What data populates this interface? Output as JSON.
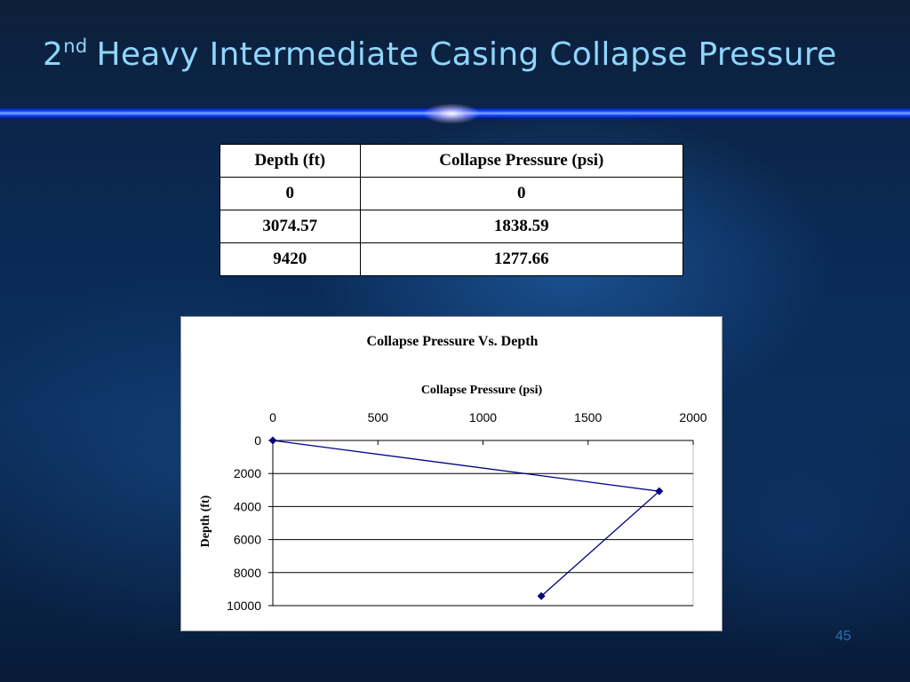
{
  "slide": {
    "title_prefix": "2",
    "title_sup": "nd",
    "title_main": "Heavy Intermediate Casing Collapse Pressure",
    "page_number": "45"
  },
  "table": {
    "headers": [
      "Depth (ft)",
      "Collapse Pressure (psi)"
    ],
    "rows": [
      [
        "0",
        "0"
      ],
      [
        "3074.57",
        "1838.59"
      ],
      [
        "9420",
        "1277.66"
      ]
    ]
  },
  "chart_data": {
    "type": "line",
    "title": "Collapse Pressure Vs. Depth",
    "xlabel": "Collapse Pressure (psi)",
    "ylabel": "Depth (ft)",
    "x_axis_position": "top",
    "y_axis_reversed": true,
    "xlim": [
      0,
      2000
    ],
    "ylim": [
      0,
      10000
    ],
    "x_ticks": [
      0,
      500,
      1000,
      1500,
      2000
    ],
    "y_ticks": [
      0,
      2000,
      4000,
      6000,
      8000,
      10000
    ],
    "grid": "horizontal",
    "legend": "none",
    "series": [
      {
        "x": [
          0,
          1838.59,
          1277.66
        ],
        "y": [
          0,
          3074.57,
          9420
        ],
        "color": "#000080",
        "marker": "diamond"
      }
    ]
  }
}
